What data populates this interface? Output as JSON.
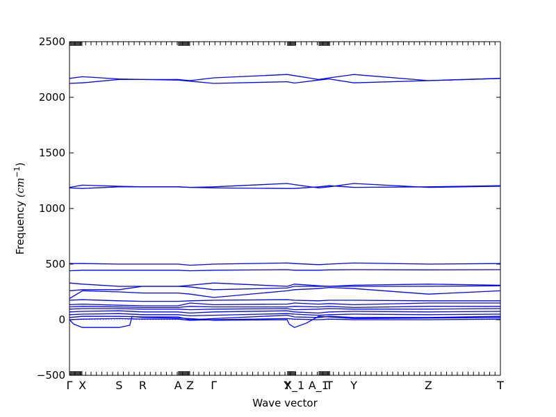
{
  "chart_data": {
    "type": "line",
    "xlabel": "Wave vector",
    "ylabel_text": "Frequency ",
    "ylabel_unit": "(cm",
    "ylabel_exp": "−1",
    "ylabel_close": ")",
    "ylim": [
      -500,
      2500
    ],
    "yticks": [
      -500,
      0,
      500,
      1000,
      1500,
      2000,
      2500
    ],
    "xlim": [
      0,
      1
    ],
    "grid": false,
    "high_symmetry_points": [
      {
        "label": "Γ",
        "x": 0.0
      },
      {
        "label": "X",
        "x": 0.03
      },
      {
        "label": "S",
        "x": 0.115
      },
      {
        "label": "R",
        "x": 0.17
      },
      {
        "label": "A",
        "x": 0.252
      },
      {
        "label": "Z",
        "x": 0.28
      },
      {
        "label": "Γ",
        "x": 0.335
      },
      {
        "label": "Y",
        "x": 0.505
      },
      {
        "label": "X_1",
        "x": 0.522
      },
      {
        "label": "A_1",
        "x": 0.578
      },
      {
        "label": "T",
        "x": 0.603
      },
      {
        "label": "Y",
        "x": 0.66
      },
      {
        "label": "Z",
        "x": 0.833
      },
      {
        "label": "T",
        "x": 1.0
      }
    ],
    "qpoint_tick_clusters": [
      [
        0.0,
        0.03
      ],
      [
        0.252,
        0.28
      ],
      [
        0.505,
        0.525
      ],
      [
        0.578,
        0.605
      ]
    ],
    "series": [
      {
        "x": [
          0,
          0.03,
          0.115,
          0.17,
          0.252,
          0.28,
          0.335,
          0.505,
          0.522,
          0.578,
          0.603,
          0.66,
          0.833,
          1.0
        ],
        "values": [
          2170,
          2185,
          2165,
          2160,
          2160,
          2150,
          2175,
          2205,
          2195,
          2160,
          2175,
          2205,
          2150,
          2170
        ]
      },
      {
        "x": [
          0,
          0.03,
          0.115,
          0.17,
          0.252,
          0.28,
          0.335,
          0.505,
          0.522,
          0.578,
          0.603,
          0.66,
          0.833,
          1.0
        ],
        "values": [
          2125,
          2130,
          2160,
          2160,
          2155,
          2145,
          2125,
          2140,
          2128,
          2155,
          2165,
          2130,
          2150,
          2170
        ]
      },
      {
        "x": [
          0,
          0.03,
          0.115,
          0.17,
          0.252,
          0.28,
          0.335,
          0.505,
          0.522,
          0.578,
          0.603,
          0.66,
          0.833,
          1.0
        ],
        "values": [
          1190,
          1210,
          1200,
          1195,
          1195,
          1190,
          1195,
          1225,
          1215,
          1185,
          1195,
          1225,
          1190,
          1200
        ]
      },
      {
        "x": [
          0,
          0.03,
          0.115,
          0.17,
          0.252,
          0.28,
          0.335,
          0.505,
          0.522,
          0.578,
          0.603,
          0.66,
          0.833,
          1.0
        ],
        "values": [
          1185,
          1180,
          1195,
          1195,
          1195,
          1190,
          1185,
          1180,
          1180,
          1195,
          1205,
          1190,
          1195,
          1205
        ]
      },
      {
        "x": [
          0,
          0.03,
          0.115,
          0.17,
          0.252,
          0.28,
          0.335,
          0.505,
          0.522,
          0.578,
          0.603,
          0.66,
          0.833,
          1.0
        ],
        "values": [
          505,
          505,
          500,
          500,
          500,
          490,
          500,
          510,
          505,
          495,
          500,
          510,
          500,
          505
        ]
      },
      {
        "x": [
          0,
          0.03,
          0.115,
          0.17,
          0.252,
          0.28,
          0.335,
          0.505,
          0.522,
          0.578,
          0.603,
          0.66,
          0.833,
          1.0
        ],
        "values": [
          440,
          445,
          445,
          445,
          445,
          440,
          445,
          450,
          445,
          445,
          448,
          450,
          448,
          450
        ]
      },
      {
        "x": [
          0,
          0.03,
          0.115,
          0.17,
          0.252,
          0.28,
          0.335,
          0.505,
          0.522,
          0.578,
          0.603,
          0.66,
          0.833,
          1.0
        ],
        "values": [
          330,
          320,
          300,
          300,
          300,
          310,
          330,
          300,
          320,
          305,
          300,
          310,
          320,
          310
        ]
      },
      {
        "x": [
          0,
          0.03,
          0.115,
          0.17,
          0.252,
          0.28,
          0.335,
          0.505,
          0.522,
          0.578,
          0.603,
          0.66,
          0.833,
          1.0
        ],
        "values": [
          260,
          270,
          270,
          300,
          300,
          295,
          270,
          285,
          300,
          300,
          300,
          300,
          300,
          305
        ]
      },
      {
        "x": [
          0,
          0.03,
          0.115,
          0.17,
          0.252,
          0.28,
          0.335,
          0.505,
          0.522,
          0.578,
          0.603,
          0.66,
          0.833,
          1.0
        ],
        "values": [
          190,
          260,
          250,
          240,
          240,
          230,
          200,
          260,
          270,
          280,
          290,
          280,
          230,
          260
        ]
      },
      {
        "x": [
          0,
          0.03,
          0.115,
          0.17,
          0.252,
          0.28,
          0.335,
          0.505,
          0.522,
          0.578,
          0.603,
          0.66,
          0.833,
          1.0
        ],
        "values": [
          175,
          180,
          170,
          165,
          165,
          170,
          175,
          180,
          175,
          170,
          175,
          175,
          170,
          170
        ]
      },
      {
        "x": [
          0,
          0.03,
          0.115,
          0.17,
          0.252,
          0.28,
          0.335,
          0.505,
          0.522,
          0.578,
          0.603,
          0.66,
          0.833,
          1.0
        ],
        "values": [
          135,
          140,
          130,
          125,
          125,
          150,
          135,
          140,
          150,
          140,
          145,
          135,
          150,
          150
        ]
      },
      {
        "x": [
          0,
          0.03,
          0.115,
          0.17,
          0.252,
          0.28,
          0.335,
          0.505,
          0.522,
          0.578,
          0.603,
          0.66,
          0.833,
          1.0
        ],
        "values": [
          115,
          120,
          115,
          110,
          110,
          120,
          115,
          115,
          120,
          115,
          120,
          110,
          120,
          120
        ]
      },
      {
        "x": [
          0,
          0.03,
          0.115,
          0.17,
          0.252,
          0.28,
          0.335,
          0.505,
          0.522,
          0.578,
          0.603,
          0.66,
          0.833,
          1.0
        ],
        "values": [
          95,
          100,
          100,
          95,
          95,
          90,
          95,
          100,
          90,
          95,
          100,
          95,
          95,
          100
        ]
      },
      {
        "x": [
          0,
          0.03,
          0.115,
          0.17,
          0.252,
          0.28,
          0.335,
          0.505,
          0.522,
          0.578,
          0.603,
          0.66,
          0.833,
          1.0
        ],
        "values": [
          70,
          75,
          80,
          70,
          70,
          60,
          70,
          80,
          70,
          60,
          70,
          75,
          70,
          75
        ]
      },
      {
        "x": [
          0,
          0.03,
          0.115,
          0.17,
          0.252,
          0.28,
          0.335,
          0.505,
          0.522,
          0.578,
          0.603,
          0.66,
          0.833,
          1.0
        ],
        "values": [
          45,
          50,
          55,
          45,
          45,
          35,
          40,
          55,
          50,
          40,
          45,
          50,
          45,
          50
        ]
      },
      {
        "x": [
          0,
          0.03,
          0.115,
          0.17,
          0.252,
          0.28,
          0.335,
          0.505,
          0.522,
          0.578,
          0.603,
          0.66,
          0.833,
          1.0
        ],
        "values": [
          20,
          30,
          30,
          25,
          25,
          0,
          10,
          40,
          25,
          20,
          30,
          20,
          20,
          30
        ]
      },
      {
        "x": [
          0,
          0.01,
          0.03,
          0.115,
          0.14,
          0.145,
          0.17,
          0.252,
          0.28,
          0.335,
          0.505,
          0.51,
          0.522,
          0.55,
          0.578,
          0.603,
          0.66,
          0.833,
          1.0
        ],
        "values": [
          0,
          -40,
          -70,
          -70,
          -50,
          30,
          20,
          15,
          10,
          -5,
          0,
          -40,
          -70,
          -30,
          30,
          25,
          10,
          15,
          20
        ]
      },
      {
        "x": [
          0,
          0.03,
          0.115,
          0.17,
          0.252,
          0.28,
          0.335,
          0.505,
          0.522,
          0.578,
          0.603,
          0.66,
          0.833,
          1.0
        ],
        "values": [
          0,
          5,
          10,
          5,
          5,
          -5,
          0,
          10,
          5,
          0,
          5,
          0,
          0,
          5
        ]
      }
    ]
  },
  "colors": {
    "series": "#0000ff",
    "frame": "#000000",
    "tick_band": "#444444"
  }
}
